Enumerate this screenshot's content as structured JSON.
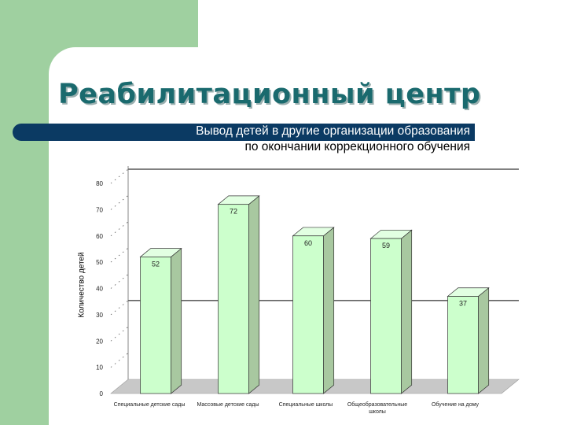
{
  "title": "Реабилитационный центр",
  "subtitle": {
    "line1": "Вывод детей в другие организации образования",
    "line2": "по окончании коррекционного обучения"
  },
  "colors": {
    "background_green": "#9fd0a0",
    "title": "#1a6a6e",
    "banner": "#0b3a63",
    "bar_front": "#ccffcc",
    "bar_side": "#a8c8a0",
    "bar_top": "#e2ffe2",
    "floor": "#c8c8c8"
  },
  "chart_data": {
    "type": "bar",
    "title": "",
    "xlabel": "",
    "ylabel": "Количество детей",
    "categories": [
      "Специальные детские сады",
      "Массовые детские сады",
      "Специальные школы",
      "Общеобразовательные школы",
      "Обучение на дому"
    ],
    "values": [
      52,
      72,
      60,
      59,
      37
    ],
    "ylim": [
      0,
      80
    ],
    "yticks": [
      0,
      10,
      20,
      30,
      40,
      50,
      60,
      70,
      80
    ],
    "style": "3d",
    "grid": "horizontal"
  }
}
